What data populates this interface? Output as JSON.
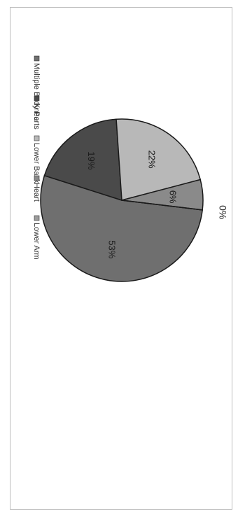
{
  "chart_data": {
    "type": "pie",
    "categories": [
      "Multiple Body Parts",
      "Knee",
      "Lower Back",
      "Heart",
      "Lower Arm"
    ],
    "values": [
      53,
      19,
      22,
      6,
      0
    ],
    "data_labels": [
      "53%",
      "19%",
      "22%",
      "6%",
      "0%"
    ],
    "colors": [
      "#6f6f6f",
      "#4a4a4a",
      "#b8b8b8",
      "#8a8a8a",
      "#9c9c9c"
    ],
    "legend_position": "right (rotated)",
    "title": "",
    "xlabel": "",
    "ylabel": ""
  }
}
